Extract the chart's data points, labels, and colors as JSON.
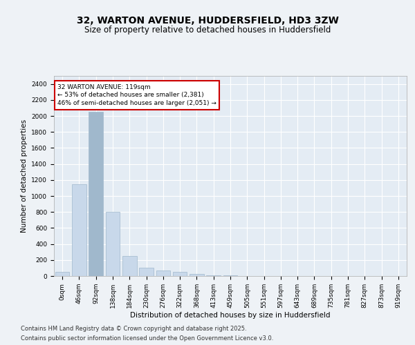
{
  "title_line1": "32, WARTON AVENUE, HUDDERSFIELD, HD3 3ZW",
  "title_line2": "Size of property relative to detached houses in Huddersfield",
  "xlabel": "Distribution of detached houses by size in Huddersfield",
  "ylabel": "Number of detached properties",
  "bar_color": "#c8d8ea",
  "bar_edge_color": "#a0b8cc",
  "highlight_bar_color": "#a0b8cc",
  "background_color": "#eef2f6",
  "plot_bg_color": "#e4ecf4",
  "grid_color": "#ffffff",
  "annotation_box_color": "#cc0000",
  "categories": [
    "0sqm",
    "46sqm",
    "92sqm",
    "138sqm",
    "184sqm",
    "230sqm",
    "276sqm",
    "322sqm",
    "368sqm",
    "413sqm",
    "459sqm",
    "505sqm",
    "551sqm",
    "597sqm",
    "643sqm",
    "689sqm",
    "735sqm",
    "781sqm",
    "827sqm",
    "873sqm",
    "919sqm"
  ],
  "values": [
    50,
    1150,
    2050,
    800,
    250,
    100,
    70,
    50,
    30,
    10,
    5,
    2,
    1,
    1,
    0,
    0,
    0,
    0,
    0,
    0,
    0
  ],
  "highlight_index": 2,
  "ylim": [
    0,
    2500
  ],
  "yticks": [
    0,
    200,
    400,
    600,
    800,
    1000,
    1200,
    1400,
    1600,
    1800,
    2000,
    2200,
    2400
  ],
  "annotation_text": "32 WARTON AVENUE: 119sqm\n← 53% of detached houses are smaller (2,381)\n46% of semi-detached houses are larger (2,051) →",
  "footnote_line1": "Contains HM Land Registry data © Crown copyright and database right 2025.",
  "footnote_line2": "Contains public sector information licensed under the Open Government Licence v3.0.",
  "title_fontsize": 10,
  "subtitle_fontsize": 8.5,
  "axis_label_fontsize": 7.5,
  "tick_fontsize": 6.5,
  "annotation_fontsize": 6.5,
  "footnote_fontsize": 6.0
}
